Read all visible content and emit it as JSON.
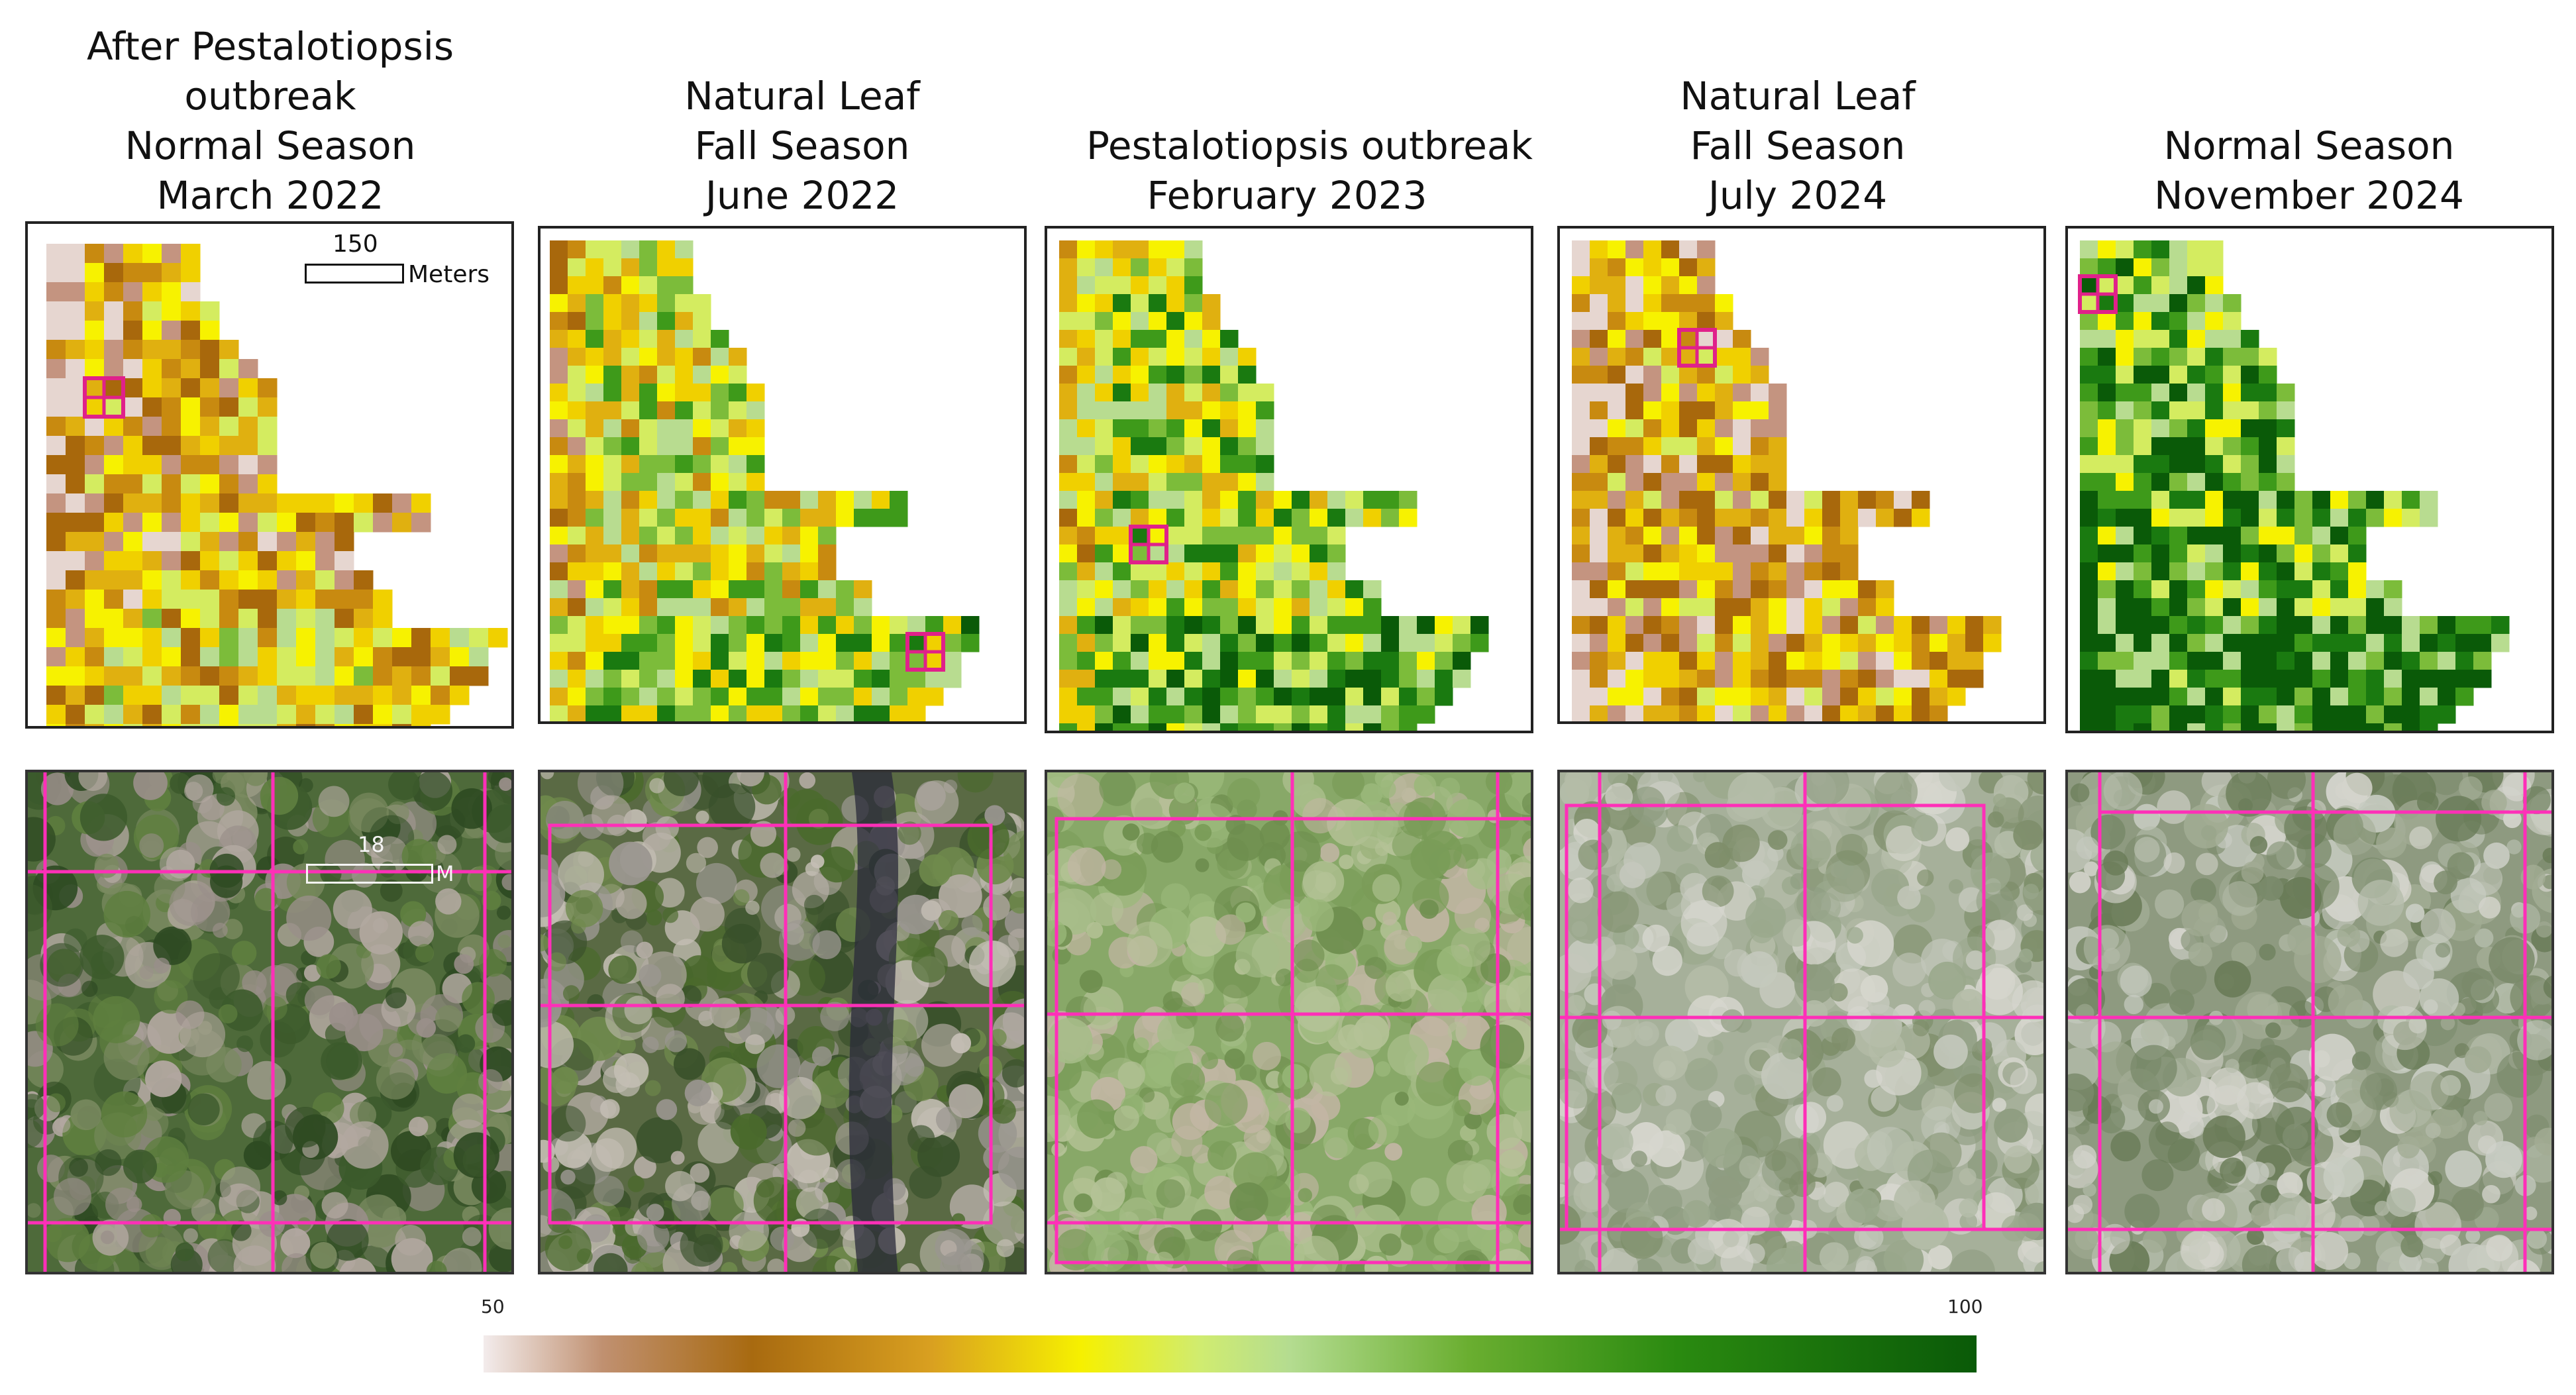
{
  "titles": [
    [
      "After Pestalotiopsis",
      "outbreak",
      "Normal Season",
      "March 2022"
    ],
    [
      "Natural Leaf",
      "Fall Season",
      "June 2022"
    ],
    [
      "Pestalotiopsis outbreak",
      "February 2023"
    ],
    [
      "Natural Leaf",
      "Fall Season",
      "July 2024"
    ],
    [
      "Normal Season",
      "November 2024"
    ]
  ],
  "scalebar_map": {
    "value": "150",
    "unit": "Meters"
  },
  "scalebar_photo": {
    "value": "18",
    "unit": "M"
  },
  "colorbar": {
    "min_label": "50",
    "max_label": "100"
  },
  "colors": {
    "highlight": "#e0218a",
    "photo_grid": "#ff2fb8",
    "ramp": [
      "#e6d6d0",
      "#c49480",
      "#a8680c",
      "#c88a10",
      "#e0b010",
      "#f0d000",
      "#f7f200",
      "#d4ec60",
      "#b8dc90",
      "#7cbc3a",
      "#3e9a1a",
      "#1a7a10",
      "#0a5a08"
    ]
  },
  "maps": [
    {
      "name": "map-march-2022",
      "seed": 11,
      "bias": 0.32
    },
    {
      "name": "map-june-2022",
      "seed": 23,
      "bias": 0.55
    },
    {
      "name": "map-february-2023",
      "seed": 37,
      "bias": 0.62
    },
    {
      "name": "map-july-2024",
      "seed": 41,
      "bias": 0.3
    },
    {
      "name": "map-november-2024",
      "seed": 53,
      "bias": 0.76
    }
  ],
  "photos": [
    {
      "name": "photo-march-2022",
      "tone": "dark-mixed"
    },
    {
      "name": "photo-june-2022",
      "tone": "palms-river"
    },
    {
      "name": "photo-february-2023",
      "tone": "green-light"
    },
    {
      "name": "photo-july-2024",
      "tone": "grey-light"
    },
    {
      "name": "photo-november-2024",
      "tone": "grey-green"
    }
  ]
}
